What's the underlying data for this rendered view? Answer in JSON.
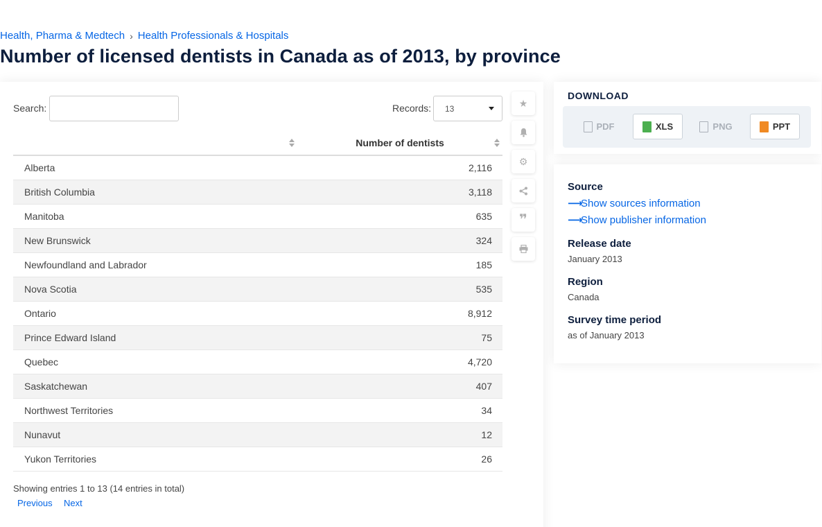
{
  "breadcrumb": {
    "items": [
      "Health, Pharma & Medtech",
      "Health Professionals & Hospitals"
    ],
    "separator": "›"
  },
  "page_title": "Number of licensed dentists in Canada as of 2013, by province",
  "controls": {
    "search_label": "Search:",
    "search_value": "",
    "records_label": "Records:",
    "records_value": "13"
  },
  "table": {
    "columns": [
      "",
      "Number of dentists"
    ],
    "rows": [
      {
        "name": "Alberta",
        "value": "2,116"
      },
      {
        "name": "British Columbia",
        "value": "3,118"
      },
      {
        "name": "Manitoba",
        "value": "635"
      },
      {
        "name": "New Brunswick",
        "value": "324"
      },
      {
        "name": "Newfoundland and Labrador",
        "value": "185"
      },
      {
        "name": "Nova Scotia",
        "value": "535"
      },
      {
        "name": "Ontario",
        "value": "8,912"
      },
      {
        "name": "Prince Edward Island",
        "value": "75"
      },
      {
        "name": "Quebec",
        "value": "4,720"
      },
      {
        "name": "Saskatchewan",
        "value": "407"
      },
      {
        "name": "Northwest Territories",
        "value": "34"
      },
      {
        "name": "Nunavut",
        "value": "12"
      },
      {
        "name": "Yukon Territories",
        "value": "26"
      }
    ]
  },
  "pagination": {
    "info": "Showing entries 1 to 13 (14 entries in total)",
    "previous": "Previous",
    "next": "Next"
  },
  "tool_icons": [
    "star-icon",
    "bell-icon",
    "gear-icon",
    "share-icon",
    "quote-icon",
    "print-icon"
  ],
  "download": {
    "title": "DOWNLOAD",
    "buttons": [
      {
        "label": "PDF",
        "enabled": false
      },
      {
        "label": "XLS",
        "enabled": true
      },
      {
        "label": "PNG",
        "enabled": false
      },
      {
        "label": "PPT",
        "enabled": true
      }
    ]
  },
  "info": {
    "source_heading": "Source",
    "show_sources": "Show sources information",
    "show_publisher": "Show publisher information",
    "release_heading": "Release date",
    "release_value": "January 2013",
    "region_heading": "Region",
    "region_value": "Canada",
    "survey_heading": "Survey time period",
    "survey_value": "as of January 2013"
  },
  "colors": {
    "link": "#0666e5",
    "title": "#0d1e3d",
    "xls_icon": "#4caf50",
    "ppt_icon": "#f08a24"
  }
}
